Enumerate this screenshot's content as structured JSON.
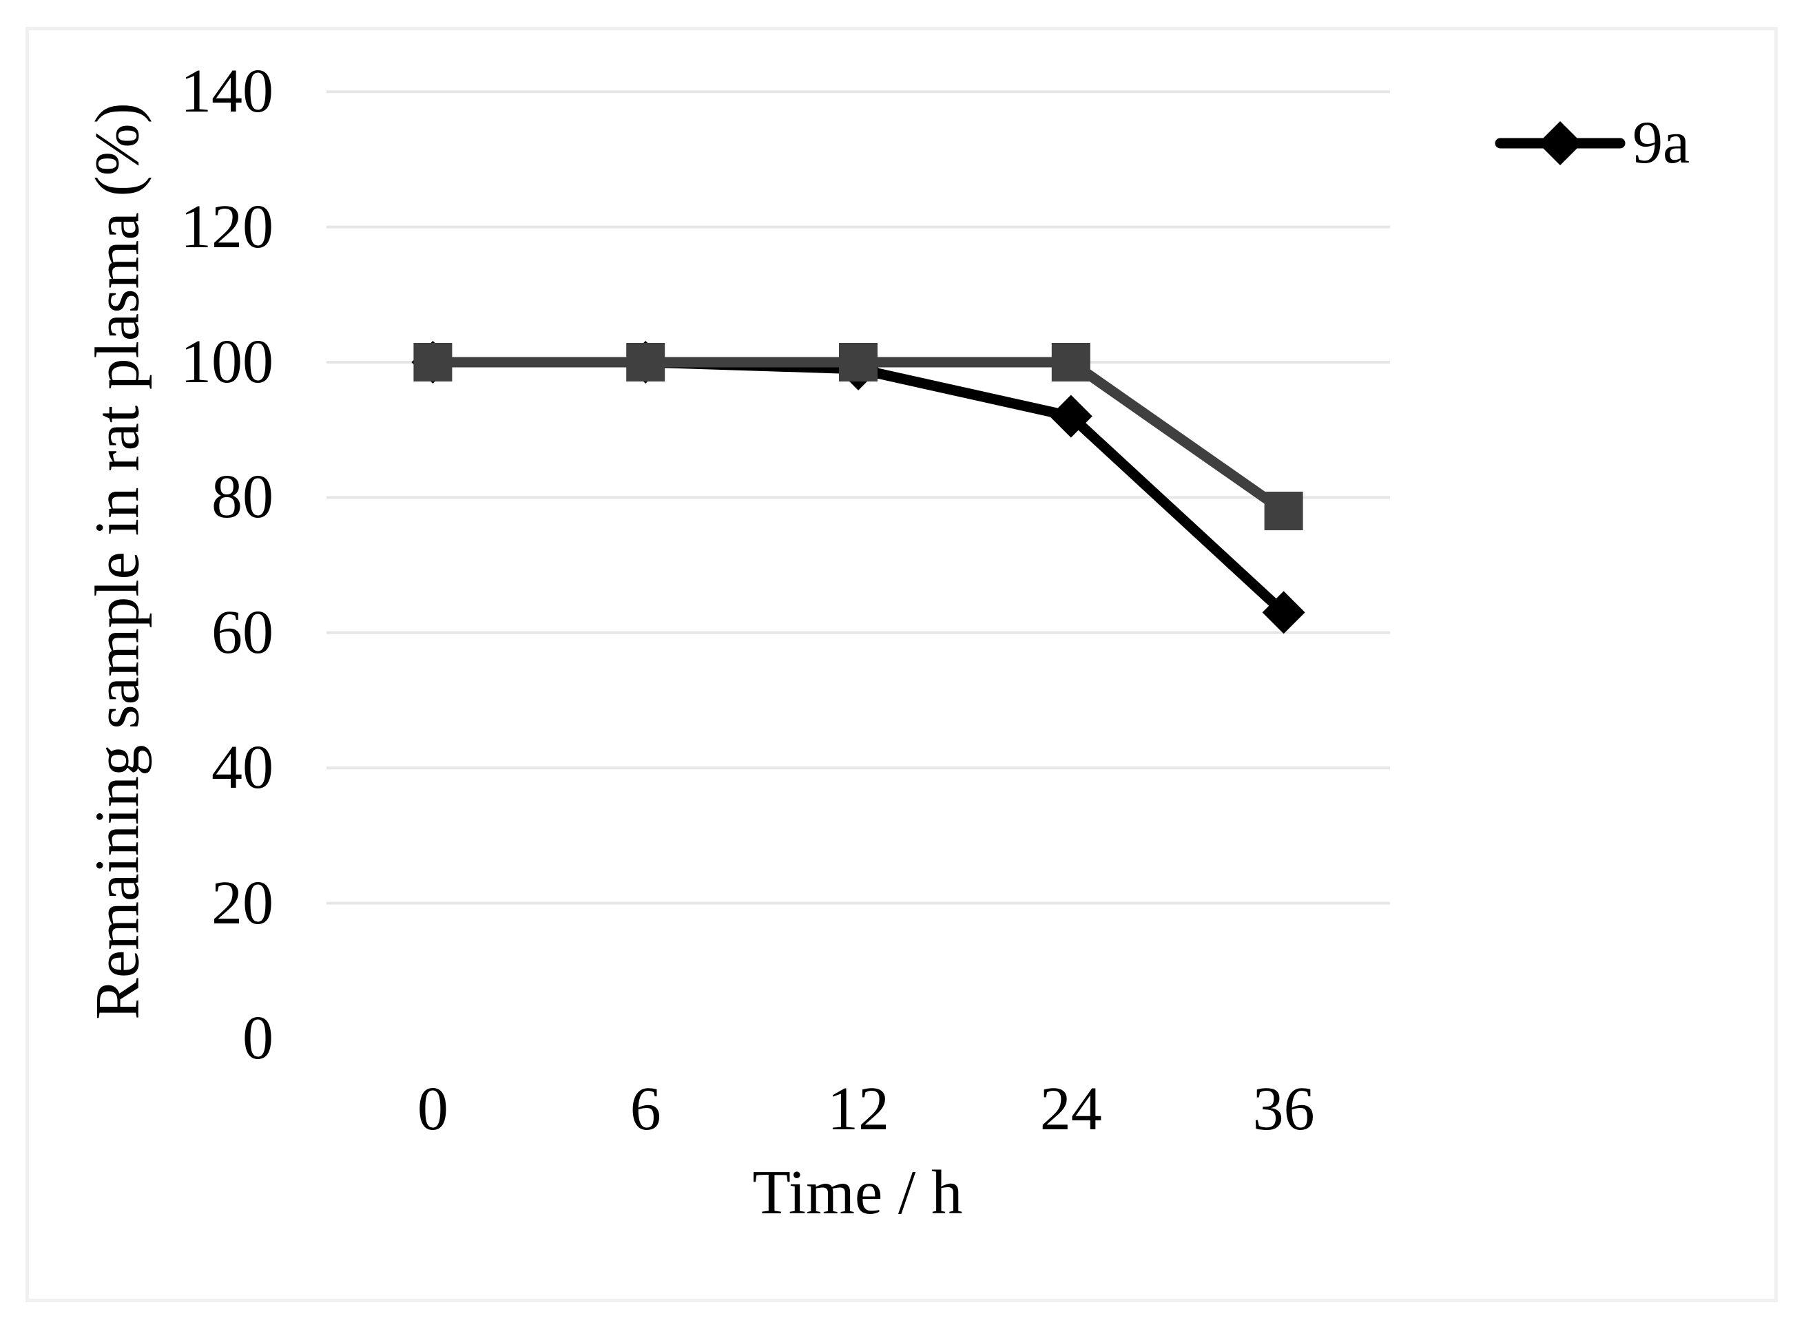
{
  "figure": {
    "background": "#ffffff",
    "border_color": "#f0f0f0"
  },
  "chart_data": {
    "type": "line",
    "x_axis_type": "category",
    "categories": [
      "0",
      "6",
      "12",
      "24",
      "36"
    ],
    "series": [
      {
        "name": "9a",
        "color": "#000000",
        "marker": "diamond",
        "values": [
          100,
          100,
          99,
          92,
          63
        ],
        "in_legend": true
      },
      {
        "name": "",
        "color": "#404040",
        "marker": "square",
        "values": [
          100,
          100,
          100,
          100,
          78
        ],
        "in_legend": false
      }
    ],
    "title": "",
    "xlabel": "Time / h",
    "ylabel": "Remaining sample in rat plasma (%)",
    "ylim": [
      0,
      140
    ],
    "yticks": [
      0,
      20,
      40,
      60,
      80,
      100,
      120,
      140
    ],
    "gridline_values": [
      20,
      40,
      60,
      80,
      100,
      120,
      140
    ],
    "grid": "horizontal",
    "gridline_color": "#e6e6e6",
    "legend_position": "top-right",
    "legend_entries": [
      {
        "label": "9a",
        "marker": "diamond",
        "color": "#000000"
      }
    ]
  }
}
